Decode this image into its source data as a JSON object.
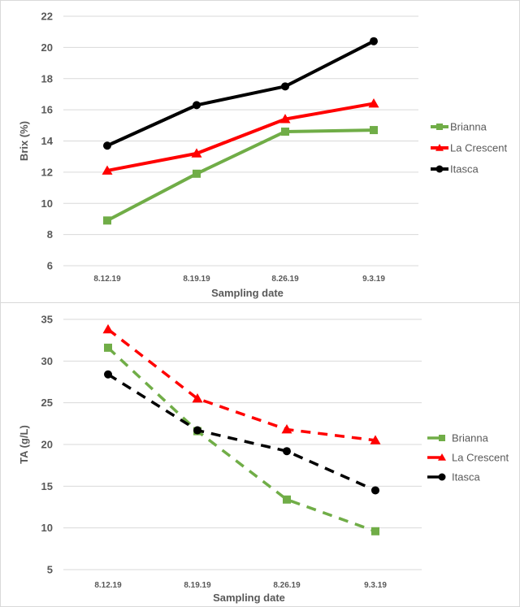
{
  "chart_data": [
    {
      "type": "line",
      "title": "",
      "xlabel": "Sampling date",
      "ylabel": "Brix (%)",
      "categories": [
        "8.12.19",
        "8.19.19",
        "8.26.19",
        "9.3.19"
      ],
      "ylim": [
        6,
        22
      ],
      "yticks": [
        6,
        8,
        10,
        12,
        14,
        16,
        18,
        20,
        22
      ],
      "grid": true,
      "legend": "right",
      "line_style": "solid",
      "series": [
        {
          "name": "Brianna",
          "color": "#70ad47",
          "marker": "square",
          "values": [
            8.9,
            11.9,
            14.6,
            14.7
          ]
        },
        {
          "name": "La Crescent",
          "color": "#ff0000",
          "marker": "triangle",
          "values": [
            12.1,
            13.2,
            15.4,
            16.4
          ]
        },
        {
          "name": "Itasca",
          "color": "#000000",
          "marker": "circle",
          "values": [
            13.7,
            16.3,
            17.5,
            20.4
          ]
        }
      ]
    },
    {
      "type": "line",
      "title": "",
      "xlabel": "Sampling date",
      "ylabel": "TA (g/L)",
      "categories": [
        "8.12.19",
        "8.19.19",
        "8.26.19",
        "9.3.19"
      ],
      "ylim": [
        5,
        35
      ],
      "yticks": [
        5,
        10,
        15,
        20,
        25,
        30,
        35
      ],
      "grid": true,
      "legend": "right",
      "line_style": "dashed",
      "series": [
        {
          "name": "Brianna",
          "color": "#70ad47",
          "marker": "square",
          "values": [
            31.6,
            21.6,
            13.4,
            9.6
          ]
        },
        {
          "name": "La Crescent",
          "color": "#ff0000",
          "marker": "triangle",
          "values": [
            33.8,
            25.5,
            21.8,
            20.5
          ]
        },
        {
          "name": "Itasca",
          "color": "#000000",
          "marker": "circle",
          "values": [
            28.4,
            21.7,
            19.2,
            14.5
          ]
        }
      ]
    }
  ]
}
